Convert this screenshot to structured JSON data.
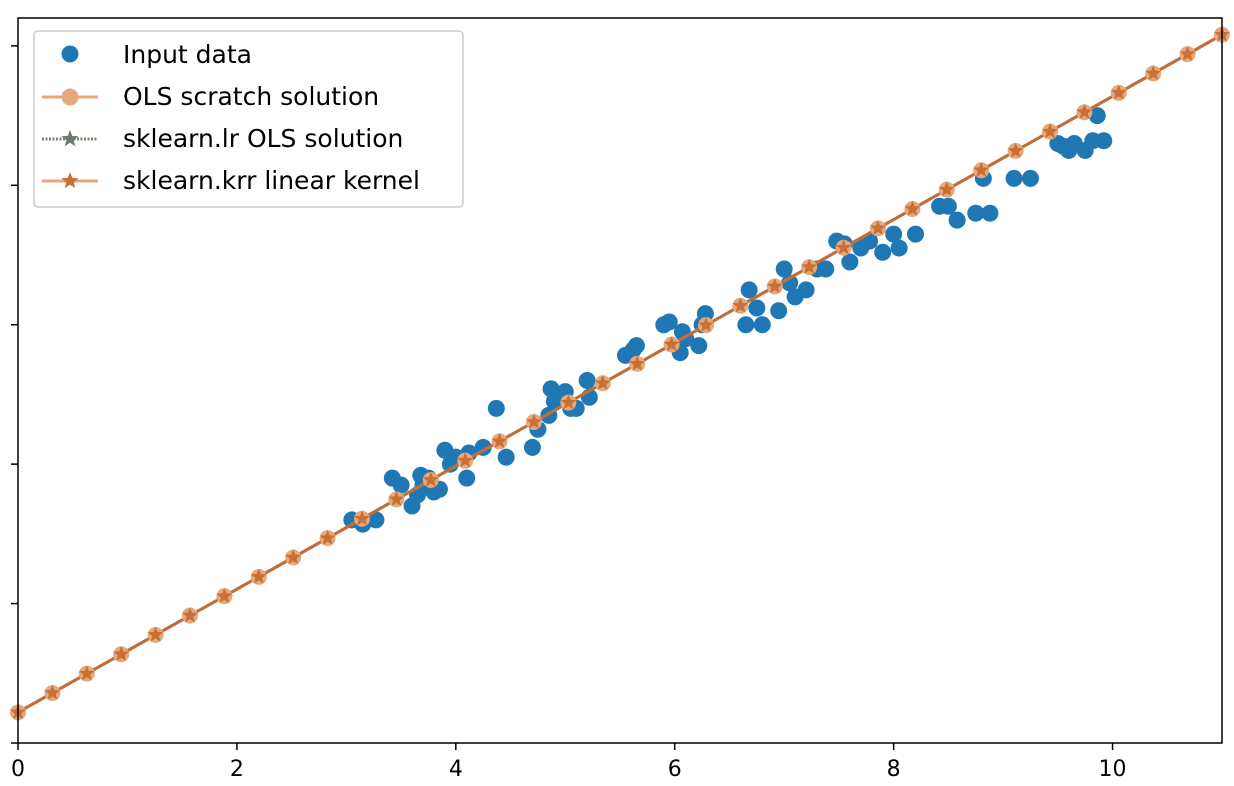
{
  "chart_data": {
    "type": "scatter",
    "title": "",
    "xlabel": "",
    "ylabel": "",
    "xlim": [
      0,
      11
    ],
    "ylim": [
      0,
      5.2
    ],
    "grid": false,
    "legend_position": "top-left",
    "x_ticks": [
      0,
      2,
      4,
      6,
      8,
      10
    ],
    "x_tick_labels": [
      "0",
      "2",
      "4",
      "6",
      "8",
      "10"
    ],
    "y_ticks": [
      0,
      1,
      2,
      3,
      4,
      5
    ],
    "y_tick_labels": [
      "",
      "",
      "",
      "",
      "",
      ""
    ],
    "colors": {
      "input": "#1f77b4",
      "ols_scratch": "#e6a87a",
      "sklearn_lr": "#6e7b72",
      "sklearn_krr": "#cc6f33"
    },
    "series": [
      {
        "name": "Input data",
        "kind": "scatter",
        "x": [
          3.05,
          3.15,
          3.27,
          3.42,
          3.5,
          3.6,
          3.65,
          3.68,
          3.7,
          3.75,
          3.8,
          3.85,
          3.9,
          3.95,
          4.0,
          4.1,
          4.12,
          4.25,
          4.37,
          4.46,
          4.7,
          4.75,
          4.85,
          4.87,
          4.9,
          5.0,
          5.05,
          5.1,
          5.2,
          5.22,
          5.55,
          5.62,
          5.65,
          5.9,
          5.95,
          6.05,
          6.07,
          6.1,
          6.22,
          6.25,
          6.28,
          6.65,
          6.68,
          6.75,
          6.8,
          6.95,
          7.0,
          7.05,
          7.1,
          7.2,
          7.3,
          7.38,
          7.48,
          7.55,
          7.6,
          7.7,
          7.78,
          7.9,
          8.0,
          8.05,
          8.2,
          8.42,
          8.5,
          8.58,
          8.75,
          8.82,
          8.88,
          9.1,
          9.25,
          9.5,
          9.55,
          9.6,
          9.65,
          9.75,
          9.82,
          9.86,
          9.92
        ],
        "y": [
          1.6,
          1.57,
          1.6,
          1.9,
          1.85,
          1.7,
          1.78,
          1.92,
          1.85,
          1.9,
          1.8,
          1.82,
          2.1,
          2.0,
          2.05,
          1.9,
          2.08,
          2.12,
          2.4,
          2.05,
          2.12,
          2.25,
          2.35,
          2.54,
          2.45,
          2.52,
          2.4,
          2.4,
          2.6,
          2.48,
          2.78,
          2.82,
          2.85,
          3.0,
          3.02,
          2.8,
          2.95,
          2.9,
          2.85,
          3.0,
          3.08,
          3.0,
          3.25,
          3.12,
          3.0,
          3.1,
          3.4,
          3.3,
          3.2,
          3.25,
          3.4,
          3.4,
          3.6,
          3.58,
          3.45,
          3.55,
          3.6,
          3.52,
          3.65,
          3.55,
          3.65,
          3.85,
          3.85,
          3.75,
          3.8,
          4.05,
          3.8,
          4.05,
          4.05,
          4.3,
          4.28,
          4.25,
          4.3,
          4.25,
          4.32,
          4.5,
          4.32
        ]
      },
      {
        "name": "OLS scratch solution",
        "kind": "line",
        "x_start": 0,
        "x_end": 11,
        "markers": 36,
        "intercept": 0.22,
        "slope": 0.4418
      },
      {
        "name": "sklearn.lr OLS solution",
        "kind": "line",
        "x_start": 0,
        "x_end": 11,
        "markers": 36,
        "intercept": 0.22,
        "slope": 0.4418
      },
      {
        "name": "sklearn.krr linear kernel",
        "kind": "line",
        "x_start": 0,
        "x_end": 11,
        "markers": 36,
        "intercept": 0.22,
        "slope": 0.4418
      }
    ]
  }
}
